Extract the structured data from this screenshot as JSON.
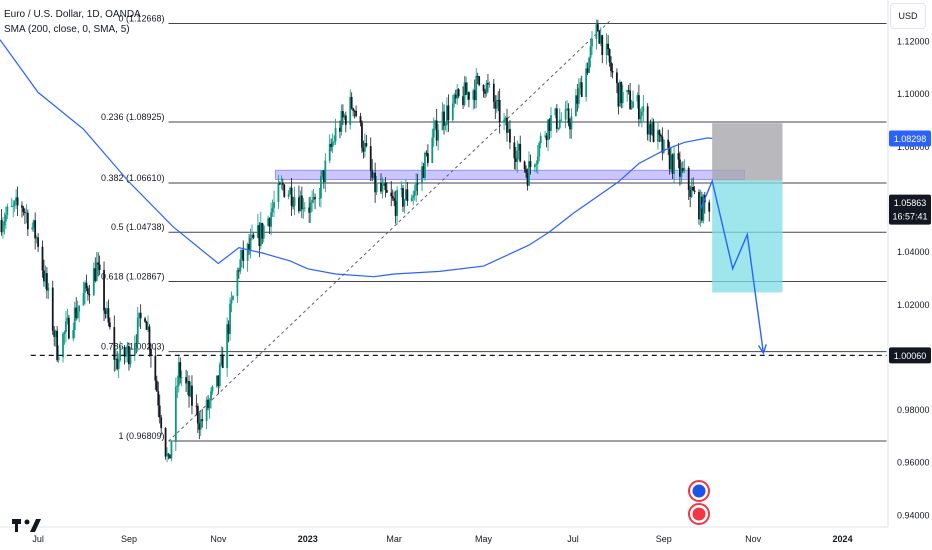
{
  "header": {
    "title": "Euro / U.S. Dollar, 1D, OANDA",
    "indicator": "SMA (200, close, 0, SMA, 5)",
    "currency_button": "USD"
  },
  "colors": {
    "sma": "#2962ff",
    "bull": "#089981",
    "bear": "#131722",
    "fib": "#434651",
    "zone": "#b9b3ff",
    "stop_box": "#a6a6ad",
    "target_box": "#7ddde6",
    "projection": "#2962ff"
  },
  "chart_data": {
    "type": "candlestick",
    "y_axis": {
      "ticks": [
        "1.12000",
        "1.10000",
        "1.08000",
        "1.06000",
        "1.04000",
        "1.02000",
        "1.00000",
        "0.98000",
        "0.96000",
        "0.94000"
      ],
      "ylim": [
        0.9354,
        1.1356
      ],
      "side": "right"
    },
    "x_axis": {
      "ticks": [
        "Jul",
        "Sep",
        "Nov",
        "2023",
        "Mar",
        "May",
        "Jul",
        "Sep",
        "Nov",
        "2024"
      ],
      "tick_dates": [
        "2022-07-01",
        "2022-09-01",
        "2022-11-01",
        "2023-01-01",
        "2023-03-01",
        "2023-05-01",
        "2023-07-01",
        "2023-09-01",
        "2023-11-01",
        "2024-01-01"
      ],
      "range": [
        "2022-06-05",
        "2024-02-01"
      ]
    },
    "price_labels": [
      {
        "text": "1.08298",
        "value": 1.08298,
        "style": "sma"
      },
      {
        "text": "1.05863",
        "value": 1.05863,
        "style": "last",
        "countdown": "16:57:41"
      },
      {
        "text": "1.00060",
        "value": 1.0006,
        "style": "marker"
      }
    ],
    "fibonacci": [
      {
        "label": "0 (1.12668)",
        "value": 1.12668
      },
      {
        "label": "0.236 (1.08925)",
        "value": 1.08925
      },
      {
        "label": "0.382 (1.06610)",
        "value": 1.0661
      },
      {
        "label": "0.5 (1.04738)",
        "value": 1.04738
      },
      {
        "label": "0.618 (1.02867)",
        "value": 1.02867
      },
      {
        "label": "0.786 (1.00203)",
        "value": 1.00203
      },
      {
        "label": "1 (0.96809)",
        "value": 0.96809
      }
    ],
    "fib_range": [
      "2022-09-28",
      "2023-07-18"
    ],
    "fib_extend_to": "2024-01-31",
    "horizontal_dashed": {
      "value": 1.0006,
      "from": "2022-06-26",
      "to": "2024-01-31"
    },
    "zone": {
      "from": "2022-12-10",
      "to": "2023-10-26",
      "low": 1.0674,
      "high": 1.0709
    },
    "trendline": {
      "from": [
        "2022-09-28",
        0.968
      ],
      "to": [
        "2023-07-26",
        1.1275
      ]
    },
    "position": {
      "entry": 1.067,
      "stop": 1.0888,
      "target": 1.0245,
      "from": "2023-10-04",
      "to": "2023-11-21"
    },
    "projection_path": [
      [
        "2023-09-26",
        1.056
      ],
      [
        "2023-10-04",
        1.0668
      ],
      [
        "2023-10-18",
        1.0335
      ],
      [
        "2023-10-28",
        1.0465
      ],
      [
        "2023-11-08",
        1.0015
      ]
    ],
    "sma_200": [
      [
        "2022-06-05",
        1.1205
      ],
      [
        "2022-07-01",
        1.1005
      ],
      [
        "2022-08-01",
        1.0865
      ],
      [
        "2022-09-01",
        1.0665
      ],
      [
        "2022-10-01",
        1.0495
      ],
      [
        "2022-11-01",
        1.0355
      ],
      [
        "2022-11-15",
        1.0415
      ],
      [
        "2022-12-01",
        1.0395
      ],
      [
        "2022-12-20",
        1.0365
      ],
      [
        "2023-01-01",
        1.0335
      ],
      [
        "2023-01-20",
        1.0315
      ],
      [
        "2023-02-15",
        1.0305
      ],
      [
        "2023-03-01",
        1.0315
      ],
      [
        "2023-04-01",
        1.0325
      ],
      [
        "2023-05-01",
        1.0345
      ],
      [
        "2023-06-01",
        1.0425
      ],
      [
        "2023-06-15",
        1.0475
      ],
      [
        "2023-07-01",
        1.0545
      ],
      [
        "2023-08-01",
        1.0665
      ],
      [
        "2023-08-15",
        1.0735
      ],
      [
        "2023-09-01",
        1.0785
      ],
      [
        "2023-09-15",
        1.0815
      ],
      [
        "2023-10-01",
        1.0832
      ],
      [
        "2023-10-04",
        1.083
      ]
    ],
    "price_anchors": [
      [
        "2022-06-05",
        1.052
      ],
      [
        "2022-06-20",
        1.058
      ],
      [
        "2022-07-01",
        1.044
      ],
      [
        "2022-07-14",
        1.003
      ],
      [
        "2022-08-01",
        1.023
      ],
      [
        "2022-08-10",
        1.034
      ],
      [
        "2022-08-23",
        0.998
      ],
      [
        "2022-09-01",
        1.002
      ],
      [
        "2022-09-12",
        1.018
      ],
      [
        "2022-09-28",
        0.958
      ],
      [
        "2022-10-05",
        0.995
      ],
      [
        "2022-10-20",
        0.975
      ],
      [
        "2022-11-01",
        0.99
      ],
      [
        "2022-11-15",
        1.035
      ],
      [
        "2022-12-01",
        1.048
      ],
      [
        "2022-12-15",
        1.065
      ],
      [
        "2023-01-05",
        1.056
      ],
      [
        "2023-01-20",
        1.085
      ],
      [
        "2023-02-01",
        1.097
      ],
      [
        "2023-02-15",
        1.065
      ],
      [
        "2023-03-01",
        1.058
      ],
      [
        "2023-03-15",
        1.063
      ],
      [
        "2023-04-01",
        1.09
      ],
      [
        "2023-04-15",
        1.098
      ],
      [
        "2023-05-01",
        1.105
      ],
      [
        "2023-05-15",
        1.088
      ],
      [
        "2023-05-31",
        1.07
      ],
      [
        "2023-06-15",
        1.09
      ],
      [
        "2023-06-30",
        1.09
      ],
      [
        "2023-07-18",
        1.125
      ],
      [
        "2023-08-01",
        1.1
      ],
      [
        "2023-08-15",
        1.095
      ],
      [
        "2023-09-01",
        1.078
      ],
      [
        "2023-09-15",
        1.068
      ],
      [
        "2023-09-26",
        1.056
      ],
      [
        "2023-10-02",
        1.0586
      ]
    ]
  }
}
